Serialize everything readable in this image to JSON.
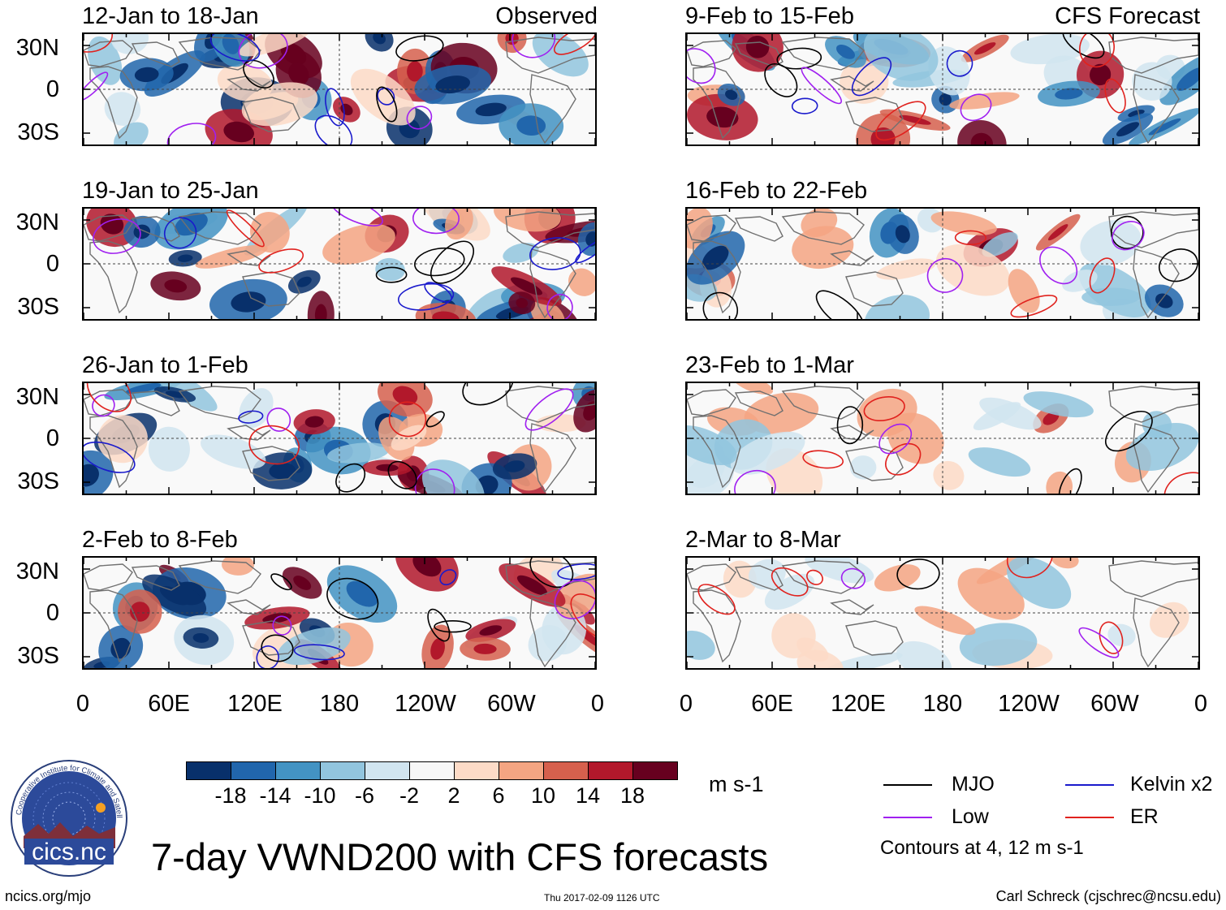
{
  "main_title": "7-day VWND200 with CFS forecasts",
  "observed_label": "Observed",
  "forecast_label": "CFS Forecast",
  "panels": {
    "left": [
      {
        "title": "12-Jan to 18-Jan",
        "intensity": 1.0
      },
      {
        "title": "19-Jan to 25-Jan",
        "intensity": 1.0
      },
      {
        "title": "26-Jan to 1-Feb",
        "intensity": 0.9
      },
      {
        "title": "2-Feb to 8-Feb",
        "intensity": 0.85
      }
    ],
    "right": [
      {
        "title": "9-Feb to 15-Feb",
        "intensity": 0.75
      },
      {
        "title": "16-Feb to 22-Feb",
        "intensity": 0.6
      },
      {
        "title": "23-Feb to 1-Mar",
        "intensity": 0.4
      },
      {
        "title": "2-Mar to 8-Mar",
        "intensity": 0.3
      }
    ]
  },
  "lat_labels": [
    "30N",
    "0",
    "30S"
  ],
  "lon_labels": [
    "0",
    "60E",
    "120E",
    "180",
    "120W",
    "60W",
    "0"
  ],
  "colorbar": {
    "colors": [
      "#08306b",
      "#2166ac",
      "#4393c3",
      "#92c5de",
      "#d1e5f0",
      "#f7f7f7",
      "#fddbc7",
      "#f4a582",
      "#d6604d",
      "#b2182b",
      "#67001f"
    ],
    "values": [
      "-18",
      "-14",
      "-10",
      "-6",
      "-2",
      "2",
      "6",
      "10",
      "14",
      "18"
    ],
    "unit": "m s-1"
  },
  "legend": {
    "mjo": {
      "label": "MJO",
      "color": "#000000"
    },
    "kelvin": {
      "label": "Kelvin x2",
      "color": "#1a1acc"
    },
    "low": {
      "label": "Low",
      "color": "#a020f0"
    },
    "er": {
      "label": "ER",
      "color": "#e0221e"
    },
    "contour_note": "Contours at 4, 12 m s-1"
  },
  "logo": {
    "text": "cics.nc",
    "ring_text": "Cooperative Institute for Climate and Satellites"
  },
  "footer": {
    "url": "ncics.org/mjo",
    "timestamp": "Thu 2017-02-09 1126 UTC",
    "author": "Carl Schreck (cjschrec@ncsu.edu)"
  }
}
